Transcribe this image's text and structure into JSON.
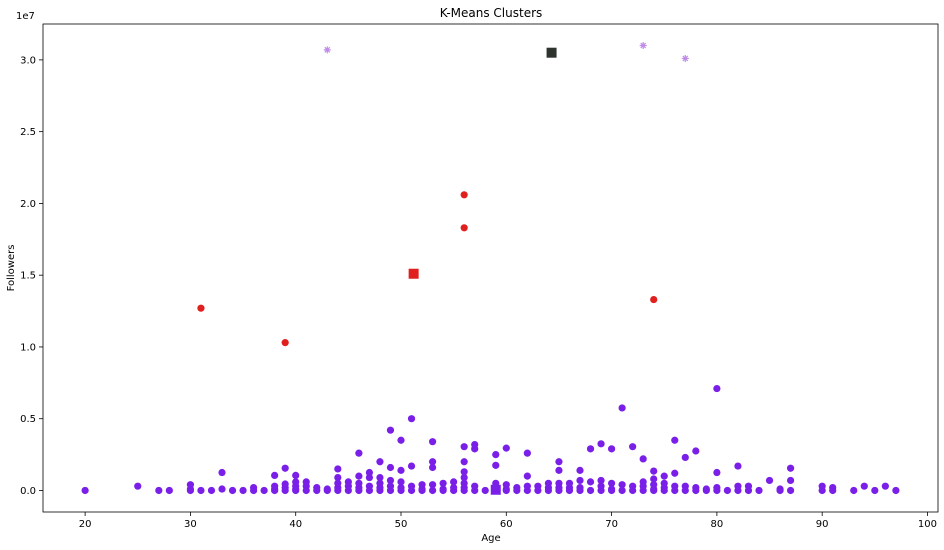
{
  "chart_data": {
    "type": "scatter",
    "title": "K-Means Clusters",
    "xlabel": "Age",
    "ylabel": "Followers",
    "offset_label": "1e7",
    "xlim": [
      16,
      101
    ],
    "ylim": [
      -1500000,
      32500000
    ],
    "xticks": [
      20,
      30,
      40,
      50,
      60,
      70,
      80,
      90,
      100
    ],
    "yticks": [
      0,
      5000000,
      10000000,
      15000000,
      20000000,
      25000000,
      30000000
    ],
    "ytick_labels": [
      "0.0",
      "0.5",
      "1.0",
      "1.5",
      "2.0",
      "2.5",
      "3.0"
    ],
    "grid": false,
    "colors": {
      "cluster_low": "#7a1fe8",
      "cluster_mid": "#e0201e",
      "cluster_high": "#c08ae8",
      "centroid_high": "#2f332f"
    },
    "series": [
      {
        "marker": "circle",
        "color": "#7a1fe8",
        "points": [
          [
            20,
            0
          ],
          [
            25,
            300000
          ],
          [
            27,
            0
          ],
          [
            28,
            0
          ],
          [
            30,
            400000
          ],
          [
            30,
            100000
          ],
          [
            30,
            0
          ],
          [
            31,
            0
          ],
          [
            32,
            0
          ],
          [
            33,
            1250000
          ],
          [
            33,
            100000
          ],
          [
            34,
            0
          ],
          [
            35,
            0
          ],
          [
            36,
            200000
          ],
          [
            36,
            0
          ],
          [
            37,
            0
          ],
          [
            38,
            1050000
          ],
          [
            38,
            300000
          ],
          [
            38,
            100000
          ],
          [
            38,
            0
          ],
          [
            39,
            1550000
          ],
          [
            39,
            450000
          ],
          [
            39,
            200000
          ],
          [
            39,
            0
          ],
          [
            40,
            1050000
          ],
          [
            40,
            600000
          ],
          [
            40,
            300000
          ],
          [
            40,
            100000
          ],
          [
            40,
            0
          ],
          [
            41,
            600000
          ],
          [
            41,
            300000
          ],
          [
            41,
            0
          ],
          [
            42,
            200000
          ],
          [
            42,
            0
          ],
          [
            43,
            0
          ],
          [
            43,
            100000
          ],
          [
            44,
            1500000
          ],
          [
            44,
            900000
          ],
          [
            44,
            500000
          ],
          [
            44,
            200000
          ],
          [
            44,
            0
          ],
          [
            45,
            600000
          ],
          [
            45,
            300000
          ],
          [
            45,
            0
          ],
          [
            46,
            2600000
          ],
          [
            46,
            1000000
          ],
          [
            46,
            500000
          ],
          [
            46,
            200000
          ],
          [
            46,
            0
          ],
          [
            47,
            1250000
          ],
          [
            47,
            900000
          ],
          [
            47,
            300000
          ],
          [
            47,
            0
          ],
          [
            48,
            2000000
          ],
          [
            48,
            900000
          ],
          [
            48,
            500000
          ],
          [
            48,
            200000
          ],
          [
            48,
            0
          ],
          [
            49,
            4200000
          ],
          [
            49,
            1600000
          ],
          [
            49,
            700000
          ],
          [
            49,
            300000
          ],
          [
            49,
            0
          ],
          [
            50,
            3500000
          ],
          [
            50,
            1400000
          ],
          [
            50,
            600000
          ],
          [
            50,
            200000
          ],
          [
            50,
            0
          ],
          [
            51,
            5000000
          ],
          [
            51,
            1700000
          ],
          [
            51,
            300000
          ],
          [
            51,
            0
          ],
          [
            52,
            400000
          ],
          [
            52,
            100000
          ],
          [
            52,
            0
          ],
          [
            53,
            3400000
          ],
          [
            53,
            2000000
          ],
          [
            53,
            1600000
          ],
          [
            53,
            400000
          ],
          [
            53,
            0
          ],
          [
            54,
            500000
          ],
          [
            54,
            100000
          ],
          [
            54,
            0
          ],
          [
            55,
            600000
          ],
          [
            55,
            200000
          ],
          [
            55,
            0
          ],
          [
            56,
            3050000
          ],
          [
            56,
            2000000
          ],
          [
            56,
            1300000
          ],
          [
            56,
            900000
          ],
          [
            56,
            500000
          ],
          [
            56,
            200000
          ],
          [
            56,
            0
          ],
          [
            57,
            3200000
          ],
          [
            57,
            2900000
          ],
          [
            57,
            300000
          ],
          [
            57,
            0
          ],
          [
            58,
            0
          ],
          [
            59,
            2500000
          ],
          [
            59,
            1750000
          ],
          [
            59,
            500000
          ],
          [
            59,
            200000
          ],
          [
            59,
            0
          ],
          [
            60,
            2950000
          ],
          [
            60,
            400000
          ],
          [
            60,
            100000
          ],
          [
            60,
            0
          ],
          [
            61,
            0
          ],
          [
            61,
            200000
          ],
          [
            62,
            2600000
          ],
          [
            62,
            1000000
          ],
          [
            62,
            300000
          ],
          [
            62,
            0
          ],
          [
            63,
            300000
          ],
          [
            63,
            0
          ],
          [
            64,
            500000
          ],
          [
            64,
            200000
          ],
          [
            64,
            0
          ],
          [
            65,
            2000000
          ],
          [
            65,
            1400000
          ],
          [
            65,
            500000
          ],
          [
            65,
            200000
          ],
          [
            65,
            0
          ],
          [
            66,
            500000
          ],
          [
            66,
            200000
          ],
          [
            66,
            0
          ],
          [
            67,
            1400000
          ],
          [
            67,
            700000
          ],
          [
            67,
            200000
          ],
          [
            67,
            0
          ],
          [
            68,
            2900000
          ],
          [
            68,
            600000
          ],
          [
            68,
            0
          ],
          [
            69,
            3250000
          ],
          [
            69,
            700000
          ],
          [
            69,
            300000
          ],
          [
            69,
            0
          ],
          [
            70,
            2900000
          ],
          [
            70,
            500000
          ],
          [
            70,
            100000
          ],
          [
            70,
            0
          ],
          [
            71,
            5750000
          ],
          [
            71,
            400000
          ],
          [
            71,
            0
          ],
          [
            72,
            3050000
          ],
          [
            72,
            300000
          ],
          [
            72,
            0
          ],
          [
            73,
            2200000
          ],
          [
            73,
            600000
          ],
          [
            73,
            300000
          ],
          [
            73,
            0
          ],
          [
            74,
            1350000
          ],
          [
            74,
            800000
          ],
          [
            74,
            400000
          ],
          [
            74,
            100000
          ],
          [
            74,
            0
          ],
          [
            75,
            1000000
          ],
          [
            75,
            500000
          ],
          [
            75,
            200000
          ],
          [
            75,
            0
          ],
          [
            76,
            3500000
          ],
          [
            76,
            1200000
          ],
          [
            76,
            300000
          ],
          [
            76,
            0
          ],
          [
            77,
            2300000
          ],
          [
            77,
            300000
          ],
          [
            77,
            0
          ],
          [
            78,
            2750000
          ],
          [
            78,
            200000
          ],
          [
            78,
            0
          ],
          [
            79,
            100000
          ],
          [
            79,
            0
          ],
          [
            80,
            7100000
          ],
          [
            80,
            1250000
          ],
          [
            80,
            200000
          ],
          [
            80,
            0
          ],
          [
            81,
            0
          ],
          [
            82,
            1700000
          ],
          [
            82,
            300000
          ],
          [
            82,
            0
          ],
          [
            83,
            300000
          ],
          [
            83,
            0
          ],
          [
            84,
            0
          ],
          [
            85,
            700000
          ],
          [
            86,
            100000
          ],
          [
            86,
            0
          ],
          [
            87,
            1550000
          ],
          [
            87,
            700000
          ],
          [
            87,
            0
          ],
          [
            90,
            300000
          ],
          [
            90,
            0
          ],
          [
            91,
            200000
          ],
          [
            91,
            0
          ],
          [
            93,
            0
          ],
          [
            94,
            300000
          ],
          [
            95,
            0
          ],
          [
            96,
            300000
          ],
          [
            97,
            0
          ]
        ]
      },
      {
        "marker": "circle",
        "color": "#e0201e",
        "points": [
          [
            31,
            12700000
          ],
          [
            39,
            10300000
          ],
          [
            56,
            20600000
          ],
          [
            56,
            18300000
          ],
          [
            74,
            13300000
          ]
        ]
      },
      {
        "marker": "star",
        "color": "#c08ae8",
        "points": [
          [
            43,
            30700000
          ],
          [
            73,
            31000000
          ],
          [
            77,
            30100000
          ]
        ]
      }
    ],
    "centroids": [
      {
        "x": 59,
        "y": 50000,
        "color": "#7a1fe8"
      },
      {
        "x": 51.2,
        "y": 15100000,
        "color": "#e0201e"
      },
      {
        "x": 64.3,
        "y": 30500000,
        "color": "#2f332f"
      }
    ]
  }
}
